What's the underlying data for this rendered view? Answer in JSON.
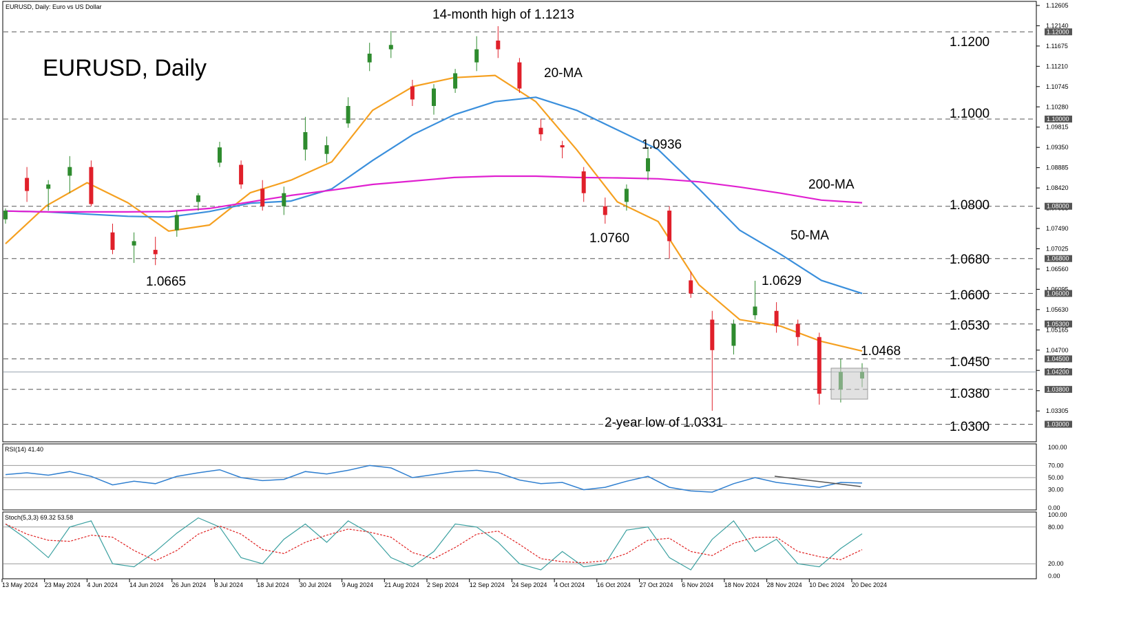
{
  "header": {
    "symbol_line": "EURUSD, Daily:  Euro vs US Dollar",
    "chart_title": "EURUSD, Daily"
  },
  "colors": {
    "bull": "#2e8b2e",
    "bear": "#e0202a",
    "ma20": "#f5a020",
    "ma50": "#3a8fdc",
    "ma200": "#e020d0",
    "rsi": "#2f7fd0",
    "stoch_main": "#3aa0a0",
    "stoch_signal": "#e02020"
  },
  "annotations": {
    "high": "14-month high of 1.1213",
    "low2y": "2-year low of 1.0331",
    "p1": "1.0665",
    "p2": "1.0760",
    "p3": "1.0936",
    "p4": "1.0629",
    "p5": "1.0468",
    "ma20": "20-MA",
    "ma50": "50-MA",
    "ma200": "200-MA"
  },
  "levels": [
    "1.1200",
    "1.1000",
    "1.0800",
    "1.0680",
    "1.0600",
    "1.0530",
    "1.0450",
    "1.0380",
    "1.0300"
  ],
  "price_axis": {
    "ticks": [
      "1.12605",
      "1.12140",
      "1.11675",
      "1.11210",
      "1.10745",
      "1.10280",
      "1.09815",
      "1.09350",
      "1.08885",
      "1.08420",
      "1.07955",
      "1.07490",
      "1.07025",
      "1.06560",
      "1.06095",
      "1.05630",
      "1.05165",
      "1.04700",
      "1.04235",
      "1.03770",
      "1.03305"
    ],
    "tagged": [
      "1.12000",
      "1.10000",
      "1.08000",
      "1.06800",
      "1.06000",
      "1.05300",
      "1.04500",
      "1.04200",
      "1.03800",
      "1.03000"
    ]
  },
  "date_axis": [
    "13 May 2024",
    "23 May 2024",
    "4 Jun 2024",
    "14 Jun 2024",
    "26 Jun 2024",
    "8 Jul 2024",
    "18 Jul 2024",
    "30 Jul 2024",
    "9 Aug 2024",
    "21 Aug 2024",
    "2 Sep 2024",
    "12 Sep 2024",
    "24 Sep 2024",
    "4 Oct 2024",
    "16 Oct 2024",
    "27 Oct 2024",
    "6 Nov 2024",
    "18 Nov 2024",
    "28 Nov 2024",
    "10 Dec 2024",
    "20 Dec 2024"
  ],
  "rsi_panel": {
    "label": "RSI(14) 41.40",
    "ticks": [
      "100.00",
      "70.00",
      "50.00",
      "30.00",
      "0.00"
    ]
  },
  "stoch_panel": {
    "label": "Stoch(5,3,3) 69.32 53.58",
    "ticks": [
      "100.00",
      "80.00",
      "20.00",
      "0.00"
    ]
  },
  "chart_data": {
    "type": "candlestick",
    "ylim": [
      1.0285,
      1.1262
    ],
    "series": [
      {
        "name": "20-MA",
        "x": [
          "13 May 2024",
          "23 May 2024",
          "4 Jun 2024",
          "14 Jun 2024",
          "26 Jun 2024",
          "8 Jul 2024",
          "18 Jul 2024",
          "30 Jul 2024",
          "9 Aug 2024",
          "21 Aug 2024",
          "2 Sep 2024",
          "12 Sep 2024",
          "24 Sep 2024",
          "4 Oct 2024",
          "16 Oct 2024",
          "27 Oct 2024",
          "6 Nov 2024",
          "18 Nov 2024",
          "28 Nov 2024",
          "10 Dec 2024",
          "20 Dec 2024",
          "27 Dec 2024"
        ],
        "values": [
          1.0714,
          1.0801,
          1.0854,
          1.0808,
          1.0743,
          1.0757,
          1.0831,
          1.086,
          1.0902,
          1.102,
          1.1075,
          1.1095,
          1.11,
          1.104,
          1.093,
          1.081,
          1.0765,
          1.062,
          1.054,
          1.0525,
          1.049,
          1.0468
        ]
      },
      {
        "name": "50-MA",
        "x": [
          "13 May 2024",
          "23 May 2024",
          "4 Jun 2024",
          "14 Jun 2024",
          "26 Jun 2024",
          "8 Jul 2024",
          "18 Jul 2024",
          "30 Jul 2024",
          "9 Aug 2024",
          "21 Aug 2024",
          "2 Sep 2024",
          "12 Sep 2024",
          "24 Sep 2024",
          "4 Oct 2024",
          "16 Oct 2024",
          "27 Oct 2024",
          "6 Nov 2024",
          "18 Nov 2024",
          "28 Nov 2024",
          "10 Dec 2024",
          "20 Dec 2024",
          "27 Dec 2024"
        ],
        "values": [
          1.0789,
          1.0787,
          1.0782,
          1.0777,
          1.0775,
          1.0788,
          1.0807,
          1.0812,
          1.084,
          1.0905,
          1.0965,
          1.101,
          1.104,
          1.105,
          1.102,
          1.0975,
          1.093,
          1.084,
          1.0745,
          1.069,
          1.063,
          1.06
        ]
      },
      {
        "name": "200-MA",
        "x": [
          "13 May 2024",
          "23 May 2024",
          "4 Jun 2024",
          "14 Jun 2024",
          "26 Jun 2024",
          "8 Jul 2024",
          "18 Jul 2024",
          "30 Jul 2024",
          "9 Aug 2024",
          "21 Aug 2024",
          "2 Sep 2024",
          "12 Sep 2024",
          "24 Sep 2024",
          "4 Oct 2024",
          "16 Oct 2024",
          "27 Oct 2024",
          "6 Nov 2024",
          "18 Nov 2024",
          "28 Nov 2024",
          "10 Dec 2024",
          "20 Dec 2024",
          "27 Dec 2024"
        ],
        "values": [
          1.0789,
          1.0787,
          1.0787,
          1.0787,
          1.0788,
          1.0795,
          1.081,
          1.0825,
          1.0837,
          1.085,
          1.0858,
          1.0866,
          1.0869,
          1.0869,
          1.0866,
          1.0865,
          1.0863,
          1.0856,
          1.0844,
          1.083,
          1.0814,
          1.0808
        ]
      }
    ],
    "ohlc": [
      [
        "13 May 2024",
        1.077,
        1.0795,
        1.076,
        1.079
      ],
      [
        "20 May 2024",
        1.0865,
        1.089,
        1.081,
        1.0835
      ],
      [
        "27 May 2024",
        1.084,
        1.086,
        1.079,
        1.085
      ],
      [
        "4 Jun 2024",
        1.087,
        1.0915,
        1.083,
        1.089
      ],
      [
        "7 Jun 2024",
        1.089,
        1.0905,
        1.08,
        1.0805
      ],
      [
        "14 Jun 2024",
        1.074,
        1.076,
        1.069,
        1.07
      ],
      [
        "20 Jun 2024",
        1.071,
        1.074,
        1.067,
        1.072
      ],
      [
        "26 Jun 2024",
        1.07,
        1.073,
        1.0665,
        1.069
      ],
      [
        "3 Jul 2024",
        1.0745,
        1.079,
        1.073,
        1.078
      ],
      [
        "8 Jul 2024",
        1.081,
        1.083,
        1.079,
        1.0825
      ],
      [
        "15 Jul 2024",
        1.09,
        1.0948,
        1.089,
        1.0935
      ],
      [
        "18 Jul 2024",
        1.0895,
        1.0905,
        1.084,
        1.085
      ],
      [
        "26 Jul 2024",
        1.084,
        1.086,
        1.079,
        1.08
      ],
      [
        "30 Jul 2024",
        1.08,
        1.0845,
        1.078,
        1.083
      ],
      [
        "5 Aug 2024",
        1.093,
        1.1005,
        1.0905,
        1.097
      ],
      [
        "9 Aug 2024",
        1.092,
        1.096,
        1.09,
        1.094
      ],
      [
        "15 Aug 2024",
        1.099,
        1.105,
        1.098,
        1.103
      ],
      [
        "21 Aug 2024",
        1.113,
        1.1175,
        1.111,
        1.115
      ],
      [
        "26 Aug 2024",
        1.116,
        1.1202,
        1.114,
        1.117
      ],
      [
        "2 Sep 2024",
        1.1075,
        1.109,
        1.103,
        1.1045
      ],
      [
        "9 Sep 2024",
        1.103,
        1.108,
        1.101,
        1.107
      ],
      [
        "12 Sep 2024",
        1.107,
        1.1115,
        1.106,
        1.1105
      ],
      [
        "17 Sep 2024",
        1.113,
        1.119,
        1.111,
        1.116
      ],
      [
        "24 Sep 2024",
        1.118,
        1.1213,
        1.114,
        1.116
      ],
      [
        "30 Sep 2024",
        1.113,
        1.114,
        1.106,
        1.107
      ],
      [
        "4 Oct 2024",
        1.098,
        1.1,
        1.095,
        1.0965
      ],
      [
        "10 Oct 2024",
        1.094,
        1.095,
        1.091,
        1.0935
      ],
      [
        "16 Oct 2024",
        1.088,
        1.089,
        1.081,
        1.083
      ],
      [
        "23 Oct 2024",
        1.08,
        1.082,
        1.076,
        1.078
      ],
      [
        "27 Oct 2024",
        1.081,
        1.085,
        1.079,
        1.084
      ],
      [
        "31 Oct 2024",
        1.088,
        1.0936,
        1.086,
        1.091
      ],
      [
        "6 Nov 2024",
        1.079,
        1.08,
        1.068,
        1.072
      ],
      [
        "12 Nov 2024",
        1.063,
        1.065,
        1.059,
        1.06
      ],
      [
        "18 Nov 2024",
        1.054,
        1.056,
        1.0331,
        1.047
      ],
      [
        "22 Nov 2024",
        1.048,
        1.054,
        1.046,
        1.053
      ],
      [
        "28 Nov 2024",
        1.055,
        1.0629,
        1.054,
        1.057
      ],
      [
        "4 Dec 2024",
        1.056,
        1.058,
        1.051,
        1.0525
      ],
      [
        "10 Dec 2024",
        1.053,
        1.054,
        1.048,
        1.05
      ],
      [
        "17 Dec 2024",
        1.05,
        1.051,
        1.0345,
        1.037
      ],
      [
        "20 Dec 2024",
        1.038,
        1.045,
        1.035,
        1.042
      ],
      [
        "27 Dec 2024",
        1.0405,
        1.044,
        1.0385,
        1.042
      ]
    ]
  }
}
